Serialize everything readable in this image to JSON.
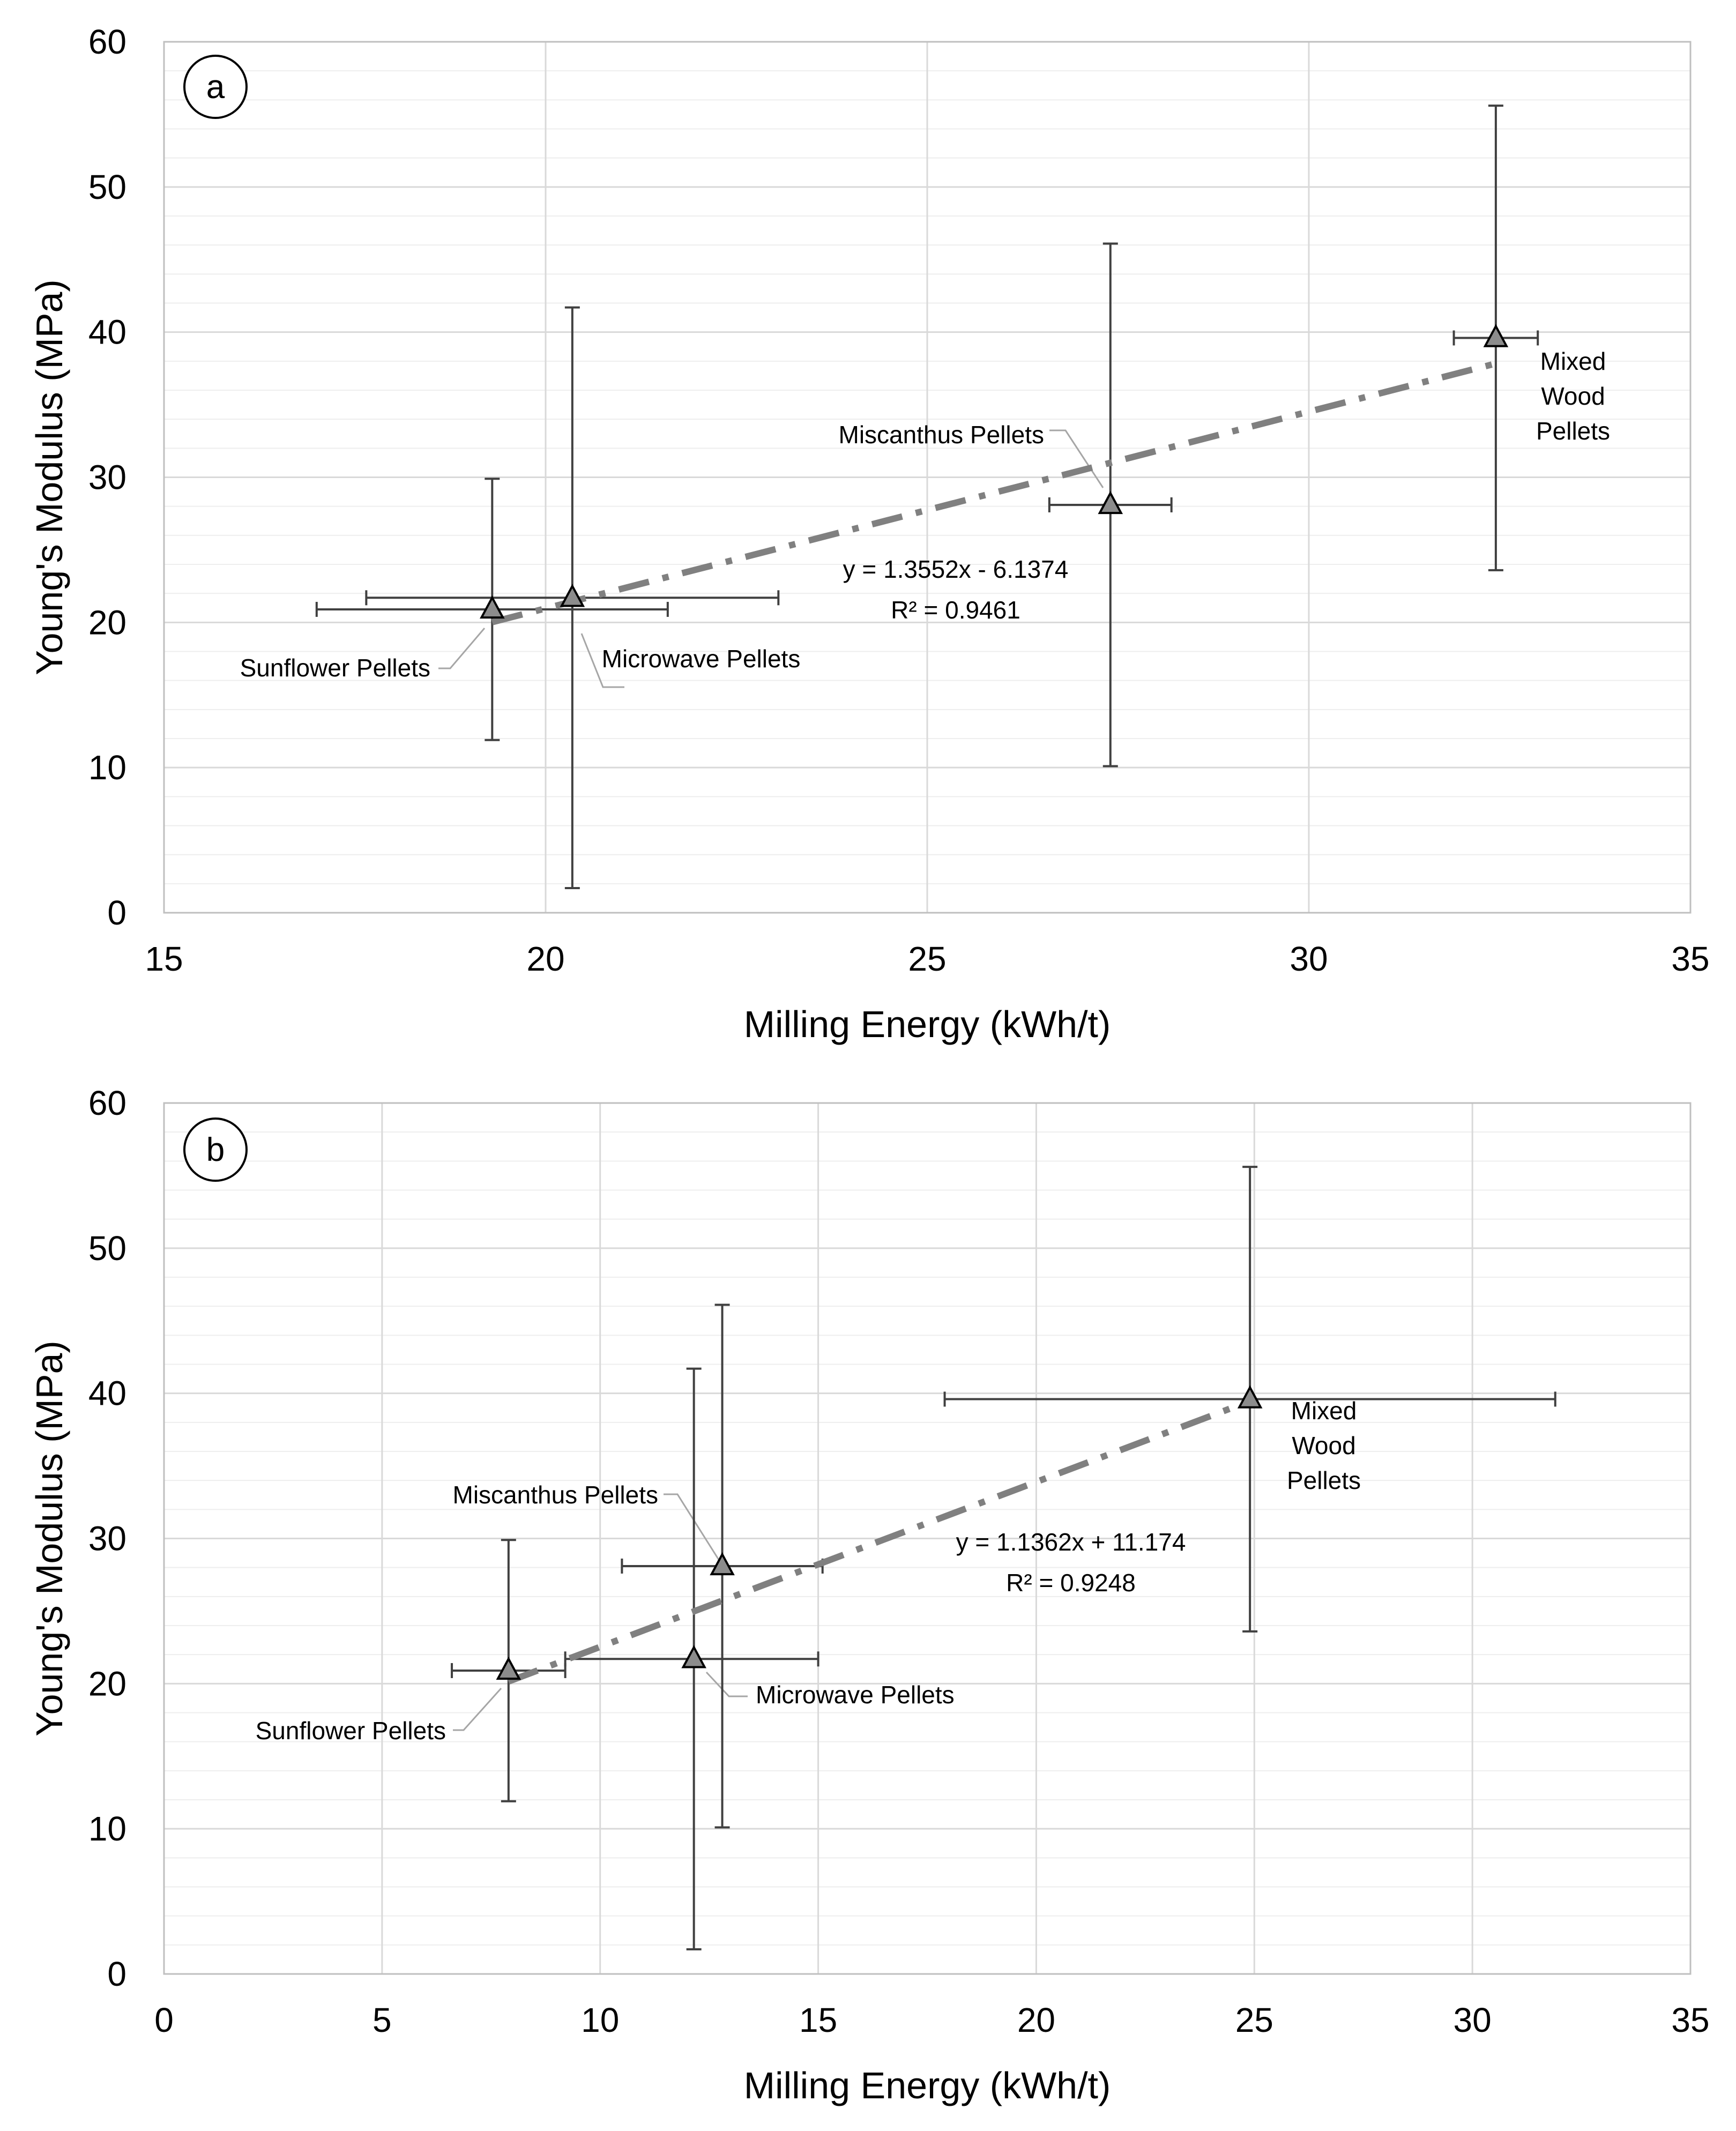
{
  "colors": {
    "grid": "#d9d9d9",
    "plot_border": "#bfbfbf",
    "error_bar": "#404040",
    "marker_fill": "#8c8c8c",
    "marker_stroke": "#000000",
    "trendline": "#808080",
    "leader_line": "#a6a6a6",
    "text": "#000000"
  },
  "chart_data": [
    {
      "type": "scatter",
      "panel_label": "a",
      "xlabel": "Milling Energy (kWh/t)",
      "ylabel": "Young's Modulus (MPa)",
      "xlim": [
        15,
        35
      ],
      "ylim": [
        0,
        60
      ],
      "x_ticks": [
        15,
        20,
        25,
        30,
        35
      ],
      "y_ticks": [
        0,
        10,
        20,
        30,
        40,
        50,
        60
      ],
      "y_minor_step": 2,
      "grid": true,
      "marker": "triangle",
      "points": [
        {
          "label": "Sunflower Pellets",
          "x": 19.3,
          "y": 20.9,
          "x_err": [
            17.0,
            21.6
          ],
          "y_err": [
            11.9,
            29.9
          ]
        },
        {
          "label": "Microwave Pellets",
          "x": 20.35,
          "y": 21.7,
          "x_err": [
            17.65,
            23.05
          ],
          "y_err": [
            1.7,
            41.7
          ]
        },
        {
          "label": "Miscanthus Pellets",
          "x": 27.4,
          "y": 28.1,
          "x_err": [
            26.6,
            28.2
          ],
          "y_err": [
            10.1,
            46.1
          ]
        },
        {
          "label": "Mixed Wood Pellets",
          "x": 32.45,
          "y": 39.6,
          "x_err": [
            31.9,
            33.0
          ],
          "y_err": [
            23.6,
            55.6
          ]
        }
      ],
      "trendline": {
        "type": "linear",
        "slope": 1.3552,
        "intercept": -6.1374,
        "x_range": [
          19.3,
          32.45
        ]
      },
      "equation_lines": [
        "y = 1.3552x - 6.1374",
        "R² = 0.9461"
      ]
    },
    {
      "type": "scatter",
      "panel_label": "b",
      "xlabel": "Milling Energy (kWh/t)",
      "ylabel": "Young's Modulus (MPa)",
      "xlim": [
        0,
        35
      ],
      "ylim": [
        0,
        60
      ],
      "x_ticks": [
        0,
        5,
        10,
        15,
        20,
        25,
        30,
        35
      ],
      "y_ticks": [
        0,
        10,
        20,
        30,
        40,
        50,
        60
      ],
      "y_minor_step": 2,
      "grid": true,
      "marker": "triangle",
      "points": [
        {
          "label": "Sunflower Pellets",
          "x": 7.9,
          "y": 20.9,
          "x_err": [
            6.6,
            9.2
          ],
          "y_err": [
            11.9,
            29.9
          ]
        },
        {
          "label": "Microwave Pellets",
          "x": 12.15,
          "y": 21.7,
          "x_err": [
            9.2,
            15.0
          ],
          "y_err": [
            1.7,
            41.7
          ]
        },
        {
          "label": "Miscanthus Pellets",
          "x": 12.8,
          "y": 28.1,
          "x_err": [
            10.5,
            15.1
          ],
          "y_err": [
            10.1,
            46.1
          ]
        },
        {
          "label": "Mixed Wood Pellets",
          "x": 24.9,
          "y": 39.6,
          "x_err": [
            17.9,
            31.9
          ],
          "y_err": [
            23.6,
            55.6
          ]
        }
      ],
      "trendline": {
        "type": "linear",
        "slope": 1.1362,
        "intercept": 11.174,
        "x_range": [
          7.9,
          24.9
        ]
      },
      "equation_lines": [
        "y = 1.1362x + 11.174",
        "R² = 0.9248"
      ]
    }
  ]
}
